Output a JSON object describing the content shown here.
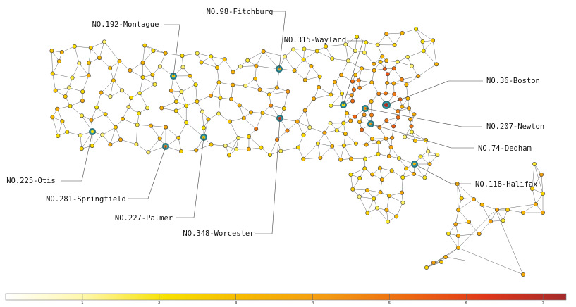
{
  "colors": {
    "scale": [
      "#ffffff",
      "#fff7a8",
      "#f7e100",
      "#f6b800",
      "#f39a12",
      "#ee6a10",
      "#e0371b",
      "#a52a2a"
    ],
    "hub_ring": "#2b9ca6",
    "edge": "#555555"
  },
  "legend": {
    "type": "colorbar",
    "min": 0,
    "max": 7.3,
    "ticks": [
      {
        "value": 1,
        "label": "1"
      },
      {
        "value": 2,
        "label": "2"
      },
      {
        "value": 3,
        "label": "3"
      },
      {
        "value": 4,
        "label": "4"
      },
      {
        "value": 5,
        "label": "5"
      },
      {
        "value": 6,
        "label": "6"
      },
      {
        "value": 7,
        "label": "7"
      }
    ]
  },
  "labels": [
    {
      "id": "fitchburg",
      "text": "NO.98-Fitchburg"
    },
    {
      "id": "montague",
      "text": "NO.192-Montague"
    },
    {
      "id": "wayland",
      "text": "NO.315-Wayland"
    },
    {
      "id": "boston",
      "text": "NO.36-Boston"
    },
    {
      "id": "newton",
      "text": "NO.207-Newton"
    },
    {
      "id": "dedham",
      "text": "NO.74-Dedham"
    },
    {
      "id": "halifax",
      "text": "NO.118-Halifax"
    },
    {
      "id": "otis",
      "text": "NO.225-Otis"
    },
    {
      "id": "springfield",
      "text": "NO.281-Springfield"
    },
    {
      "id": "palmer",
      "text": "NO.227-Palmer"
    },
    {
      "id": "worcester",
      "text": "NO.348-Worcester"
    }
  ]
}
